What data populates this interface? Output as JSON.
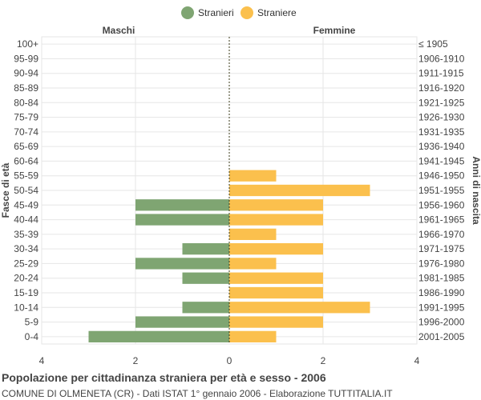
{
  "legend": {
    "male_label": "Stranieri",
    "female_label": "Straniere"
  },
  "colors": {
    "male": "#7fa572",
    "female": "#fbc04d",
    "grid": "#e6e6e6",
    "axis_line": "#3b3b1a",
    "text": "#444444"
  },
  "footer": {
    "title": "Popolazione per cittadinanza straniera per età e sesso - 2006",
    "subtitle": "COMUNE DI OLMENETA (CR) - Dati ISTAT 1° gennaio 2006 - Elaborazione TUTTITALIA.IT"
  },
  "chart_data": {
    "type": "bar",
    "orientation": "horizontal-population-pyramid",
    "left_header": "Maschi",
    "right_header": "Femmine",
    "ylabel_left": "Fasce di età",
    "ylabel_right": "Anni di nascita",
    "xlim": [
      -4,
      4
    ],
    "x_ticks": [
      -4,
      -2,
      0,
      2,
      4
    ],
    "x_tick_labels": [
      "4",
      "2",
      "0",
      "2",
      "4"
    ],
    "grid": true,
    "legend_position": "top-center",
    "categories": [
      "100+",
      "95-99",
      "90-94",
      "85-89",
      "80-84",
      "75-79",
      "70-74",
      "65-69",
      "60-64",
      "55-59",
      "50-54",
      "45-49",
      "40-44",
      "35-39",
      "30-34",
      "25-29",
      "20-24",
      "15-19",
      "10-14",
      "5-9",
      "0-4"
    ],
    "birth_years": [
      "≤ 1905",
      "1906-1910",
      "1911-1915",
      "1916-1920",
      "1921-1925",
      "1926-1930",
      "1931-1935",
      "1936-1940",
      "1941-1945",
      "1946-1950",
      "1951-1955",
      "1956-1960",
      "1961-1965",
      "1966-1970",
      "1971-1975",
      "1976-1980",
      "1981-1985",
      "1986-1990",
      "1991-1995",
      "1996-2000",
      "2001-2005"
    ],
    "series": [
      {
        "name": "Stranieri",
        "values": [
          0,
          0,
          0,
          0,
          0,
          0,
          0,
          0,
          0,
          0,
          0,
          2,
          2,
          0,
          1,
          2,
          1,
          0,
          1,
          2,
          3
        ]
      },
      {
        "name": "Straniere",
        "values": [
          0,
          0,
          0,
          0,
          0,
          0,
          0,
          0,
          0,
          1,
          3,
          2,
          2,
          1,
          2,
          1,
          2,
          2,
          3,
          2,
          1
        ]
      }
    ]
  }
}
